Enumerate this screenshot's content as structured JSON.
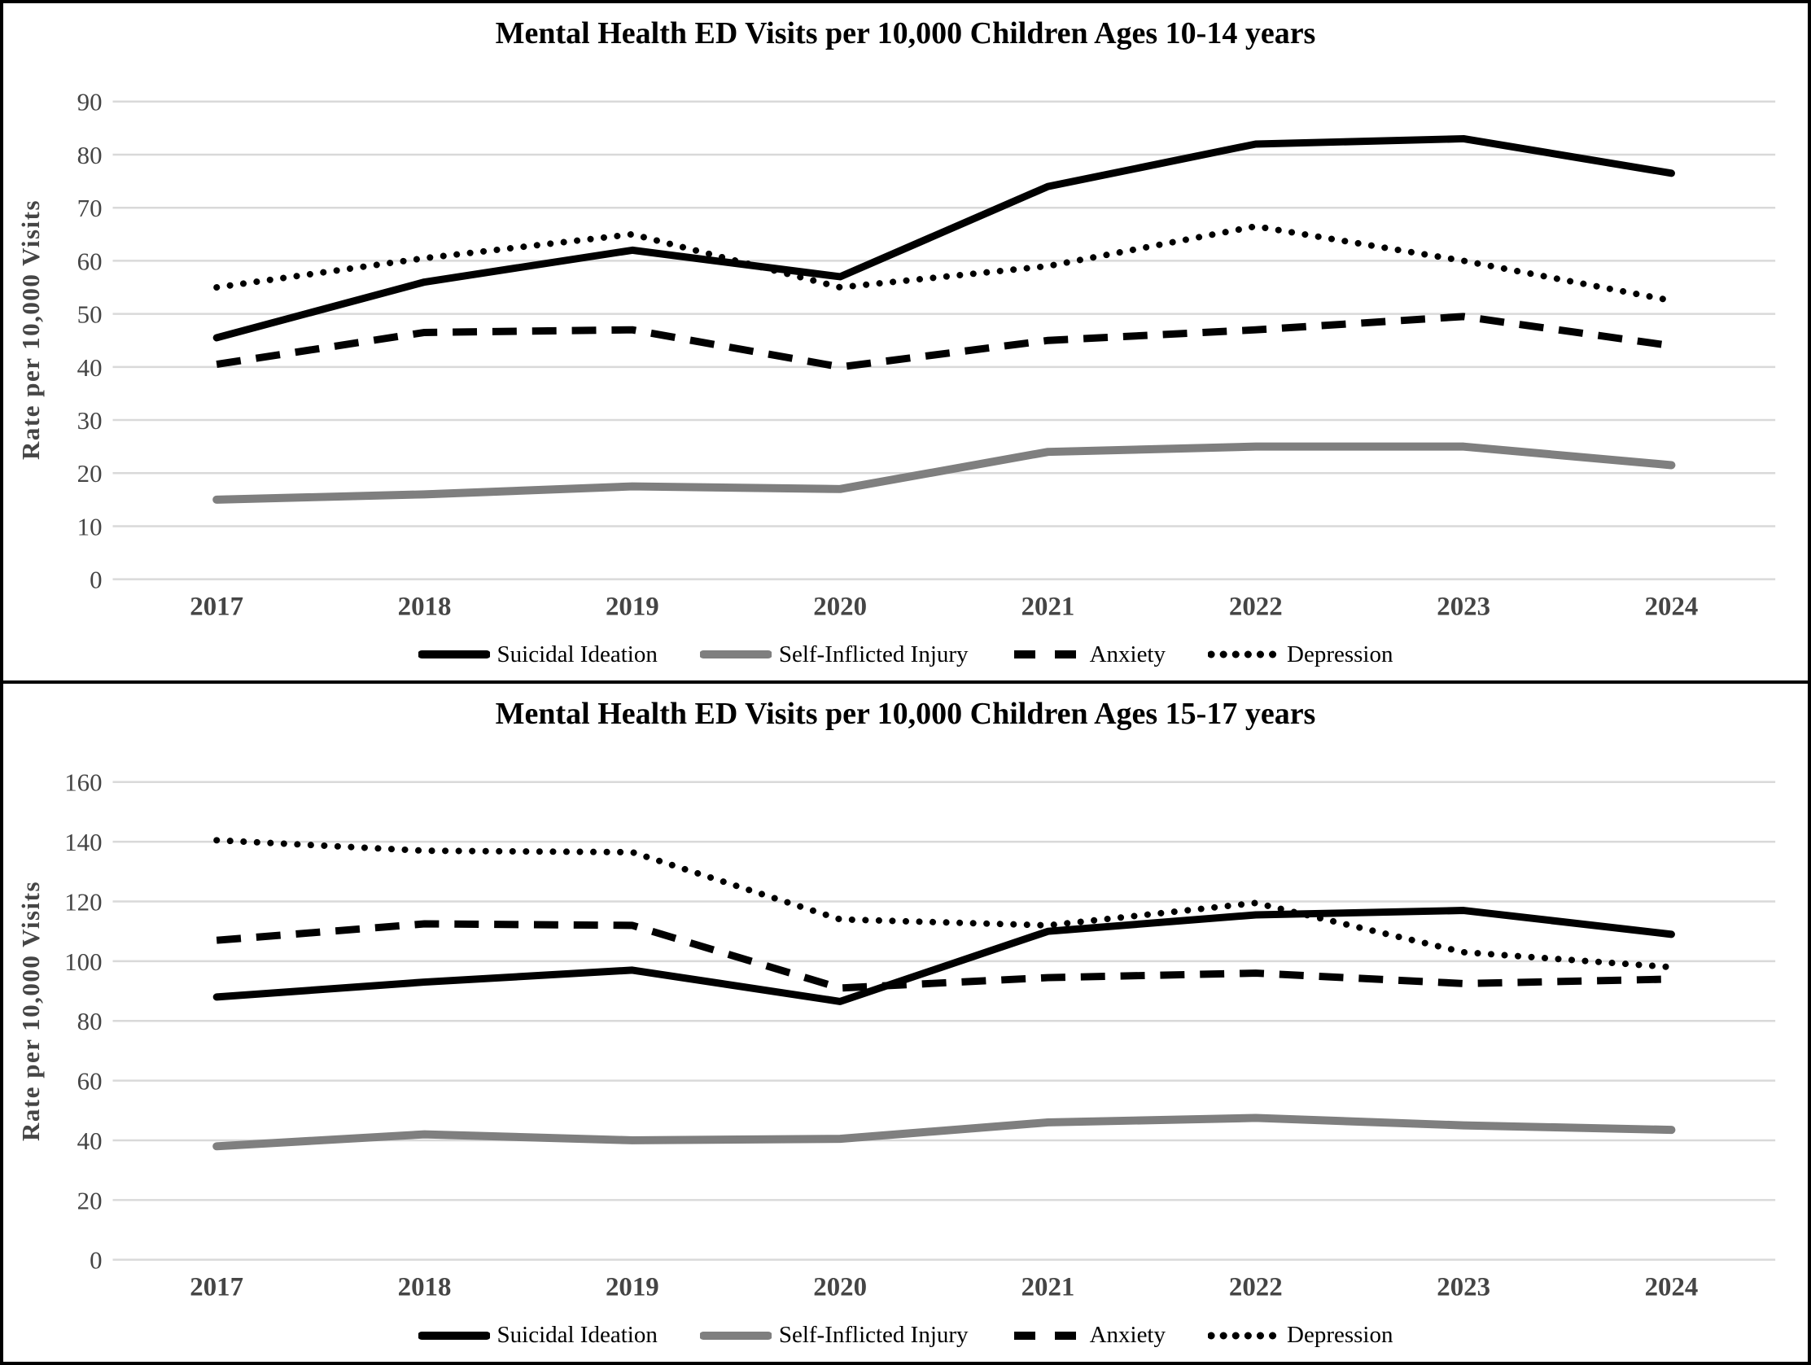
{
  "chart_data": [
    {
      "type": "line",
      "title": "Mental Health ED Visits per 10,000 Children Ages 10-14 years",
      "xlabel": "",
      "ylabel": "Rate per 10,000 Visits",
      "categories": [
        "2017",
        "2018",
        "2019",
        "2020",
        "2021",
        "2022",
        "2023",
        "2024"
      ],
      "ylim": [
        0,
        90
      ],
      "yticks": [
        0,
        10,
        20,
        30,
        40,
        50,
        60,
        70,
        80,
        90
      ],
      "grid": true,
      "legend_position": "bottom",
      "series": [
        {
          "name": "Suicidal Ideation",
          "line_style": "solid",
          "color": "#000000",
          "values": [
            45.5,
            56,
            62,
            57,
            74,
            82,
            83,
            76.5
          ]
        },
        {
          "name": "Self-Inflicted Injury",
          "line_style": "solid",
          "color": "#7f7f7f",
          "values": [
            15,
            16,
            17.5,
            17,
            24,
            25,
            25,
            21.5
          ]
        },
        {
          "name": "Anxiety",
          "line_style": "dashed",
          "color": "#000000",
          "values": [
            40.5,
            46.5,
            47,
            40,
            45,
            47,
            49.5,
            44
          ]
        },
        {
          "name": "Depression",
          "line_style": "dotted",
          "color": "#000000",
          "values": [
            55,
            60.5,
            65,
            55,
            59,
            66.5,
            60,
            52.5
          ]
        }
      ]
    },
    {
      "type": "line",
      "title": "Mental Health ED Visits per 10,000 Children Ages 15-17 years",
      "xlabel": "",
      "ylabel": "Rate per 10,000 Visits",
      "categories": [
        "2017",
        "2018",
        "2019",
        "2020",
        "2021",
        "2022",
        "2023",
        "2024"
      ],
      "ylim": [
        0,
        160
      ],
      "yticks": [
        0,
        20,
        40,
        60,
        80,
        100,
        120,
        140,
        160
      ],
      "grid": true,
      "legend_position": "bottom",
      "series": [
        {
          "name": "Suicidal Ideation",
          "line_style": "solid",
          "color": "#000000",
          "values": [
            88,
            93,
            97,
            86.5,
            110,
            115.5,
            117,
            109
          ]
        },
        {
          "name": "Self-Inflicted Injury",
          "line_style": "solid",
          "color": "#7f7f7f",
          "values": [
            38,
            42,
            40,
            40.5,
            46,
            47.5,
            45,
            43.5
          ]
        },
        {
          "name": "Anxiety",
          "line_style": "dashed",
          "color": "#000000",
          "values": [
            107,
            112.5,
            112,
            91,
            94.5,
            96,
            92.5,
            94
          ]
        },
        {
          "name": "Depression",
          "line_style": "dotted",
          "color": "#000000",
          "values": [
            140.5,
            137,
            136.5,
            114,
            112,
            119.5,
            103,
            98
          ]
        }
      ]
    }
  ],
  "style_colors": {
    "gridline": "#d9d9d9",
    "tick_label": "#454545",
    "axis_title": "#454545",
    "chart_title": "#000000",
    "legend_text": "#000000",
    "panel_border": "#000000",
    "series_black": "#000000",
    "series_gray": "#7f7f7f"
  }
}
